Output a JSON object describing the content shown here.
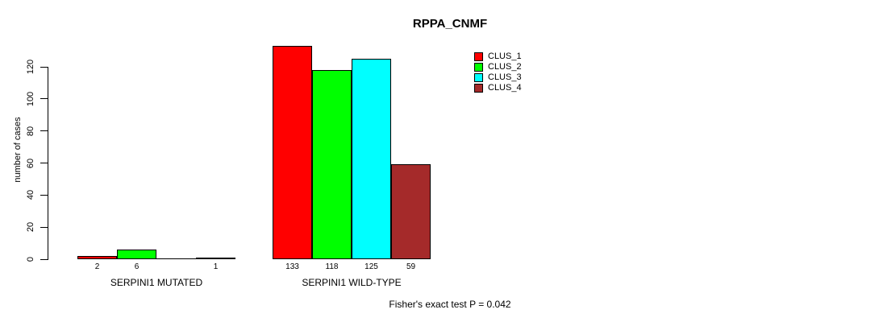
{
  "chart_data": {
    "type": "bar",
    "title": "RPPA_CNMF",
    "ylabel": "number of cases",
    "xlabel": "",
    "ylim": [
      0,
      120
    ],
    "yticks": [
      0,
      20,
      40,
      60,
      80,
      100,
      120
    ],
    "grid": false,
    "legend_position": "top-right",
    "categories": [
      "SERPINI1 MUTATED",
      "SERPINI1 WILD-TYPE"
    ],
    "series": [
      {
        "name": "CLUS_1",
        "color": "#ff0000",
        "values": [
          2,
          133
        ]
      },
      {
        "name": "CLUS_2",
        "color": "#00ff00",
        "values": [
          6,
          118
        ]
      },
      {
        "name": "CLUS_3",
        "color": "#00ffff",
        "values": [
          0,
          125
        ]
      },
      {
        "name": "CLUS_4",
        "color": "#a52a2a",
        "values": [
          1,
          59
        ]
      }
    ],
    "bar_labels": [
      [
        "2",
        "6",
        "",
        "1"
      ],
      [
        "133",
        "118",
        "125",
        "59"
      ]
    ],
    "annotation": "Fisher's exact test P = 0.042"
  }
}
